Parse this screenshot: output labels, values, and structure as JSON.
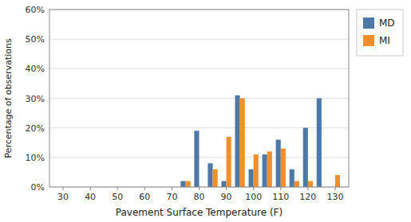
{
  "chart_data": {
    "type": "bar",
    "x": [
      75,
      80,
      85,
      90,
      95,
      100,
      105,
      110,
      115,
      120,
      125,
      130
    ],
    "series": [
      {
        "name": "MD",
        "color": "#4e79a7",
        "values": [
          2,
          19,
          8,
          2,
          31,
          6,
          11,
          16,
          6,
          20,
          30,
          0
        ]
      },
      {
        "name": "MI",
        "color": "#f28e2b",
        "values": [
          2,
          0,
          6,
          17,
          30,
          11,
          12,
          13,
          2,
          2,
          0,
          4
        ]
      }
    ],
    "x_label": "Pavement Surface Temperature (F)",
    "y_label": "Percentage of observations",
    "xlim": [
      25,
      135
    ],
    "xticks": [
      30,
      40,
      50,
      60,
      70,
      80,
      90,
      100,
      110,
      120,
      130
    ],
    "ylim": [
      0,
      60
    ],
    "yticks": [
      {
        "value": 0,
        "label": "0%"
      },
      {
        "value": 10,
        "label": "10%"
      },
      {
        "value": 20,
        "label": "20%"
      },
      {
        "value": 30,
        "label": "30%"
      },
      {
        "value": 40,
        "label": "40%"
      },
      {
        "value": 50,
        "label": "50%"
      },
      {
        "value": 60,
        "label": "60%"
      }
    ],
    "grid": true,
    "legend": "right"
  }
}
